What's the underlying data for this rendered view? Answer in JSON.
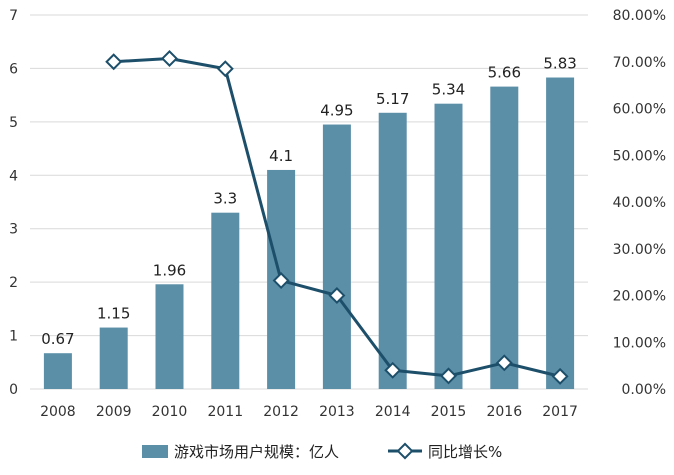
{
  "chart_data": {
    "type": "bar+line",
    "categories": [
      "2008",
      "2009",
      "2010",
      "2011",
      "2012",
      "2013",
      "2014",
      "2015",
      "2016",
      "2017"
    ],
    "series": [
      {
        "name": "游戏市场用户规模：亿人",
        "type": "bar",
        "axis": "left",
        "values": [
          0.67,
          1.15,
          1.96,
          3.3,
          4.1,
          4.95,
          5.17,
          5.34,
          5.66,
          5.83
        ],
        "labels": [
          "0.67",
          "1.15",
          "1.96",
          "3.3",
          "4.1",
          "4.95",
          "5.17",
          "5.34",
          "5.66",
          "5.83"
        ],
        "color": "#5b8fa8"
      },
      {
        "name": "同比增长%",
        "type": "line",
        "axis": "right",
        "values": [
          null,
          70.0,
          70.7,
          68.5,
          23.2,
          20.0,
          4.0,
          2.8,
          5.6,
          2.7
        ],
        "color": "#1d4f6a"
      }
    ],
    "left_axis": {
      "ylim": [
        0,
        7
      ],
      "ticks": [
        "0",
        "1",
        "2",
        "3",
        "4",
        "5",
        "6",
        "7"
      ]
    },
    "right_axis": {
      "ylim": [
        0,
        80
      ],
      "ticks": [
        "0.00%",
        "10.00%",
        "20.00%",
        "30.00%",
        "40.00%",
        "50.00%",
        "60.00%",
        "70.00%",
        "80.00%"
      ]
    },
    "grid": true,
    "legend_position": "bottom"
  }
}
